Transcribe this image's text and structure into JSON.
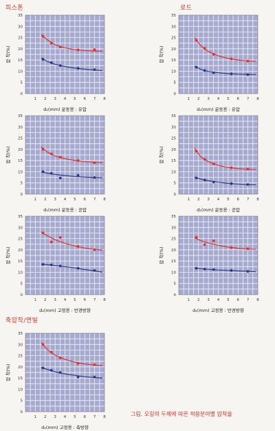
{
  "sections": {
    "piston": "피스톤",
    "rod": "로드",
    "shaft_flange": "축압착/면빌"
  },
  "caption": "그림. 오링의 두께에 따른 적용분야별 압착율",
  "colors": {
    "red": "#e0312b",
    "blue": "#283a84",
    "plot_bg": "#a7aad0"
  },
  "chart_data": [
    {
      "type": "scatter",
      "xlabel": "d₂(mm) 운동용 : 유압",
      "ylabel": "압 착(%)",
      "xlim": [
        0,
        8
      ],
      "ylim": [
        0,
        35
      ],
      "xticks": [
        "1",
        "2",
        "3",
        "4",
        "5",
        "6",
        "7",
        "8"
      ],
      "yticks": [
        "0",
        "5",
        "10",
        "15",
        "20",
        "25",
        "30",
        "35"
      ],
      "grid": true,
      "series": [
        {
          "color": "red",
          "x": [
            1.78,
            2.62,
            3.53,
            5.33,
            6.99
          ],
          "y": [
            25.5,
            22.5,
            20.8,
            19.5,
            19.6
          ],
          "curve": [
            [
              1.6,
              26.5
            ],
            [
              2.2,
              24
            ],
            [
              3,
              21.8
            ],
            [
              4,
              20.4
            ],
            [
              5,
              19.6
            ],
            [
              6,
              19.2
            ],
            [
              7,
              19
            ],
            [
              7.8,
              18.9
            ]
          ]
        },
        {
          "color": "blue",
          "x": [
            1.78,
            2.62,
            3.53,
            5.33,
            6.99
          ],
          "y": [
            15.3,
            13.8,
            12.5,
            11.3,
            10.7
          ],
          "curve": [
            [
              1.6,
              15.8
            ],
            [
              2.2,
              14.4
            ],
            [
              3,
              13.1
            ],
            [
              4,
              12.1
            ],
            [
              5,
              11.4
            ],
            [
              6,
              10.9
            ],
            [
              7,
              10.5
            ],
            [
              7.8,
              10.3
            ]
          ]
        }
      ]
    },
    {
      "type": "scatter",
      "xlabel": "d₂(mm) 운동용 : 유압",
      "ylabel": "압 착(%)",
      "xlim": [
        0,
        8
      ],
      "ylim": [
        0,
        35
      ],
      "xticks": [
        "1",
        "2",
        "3",
        "4",
        "5",
        "6",
        "7",
        "8"
      ],
      "yticks": [
        "0",
        "5",
        "10",
        "15",
        "20",
        "25",
        "30",
        "35"
      ],
      "grid": true,
      "series": [
        {
          "color": "red",
          "x": [
            1.78,
            2.62,
            3.53,
            5.33,
            6.99
          ],
          "y": [
            23.8,
            20.2,
            17.5,
            15.5,
            14.5
          ],
          "curve": [
            [
              1.6,
              25
            ],
            [
              2.2,
              21.5
            ],
            [
              3,
              18.8
            ],
            [
              4,
              16.9
            ],
            [
              5,
              15.7
            ],
            [
              6,
              15
            ],
            [
              7,
              14.6
            ],
            [
              7.8,
              14.4
            ]
          ]
        },
        {
          "color": "blue",
          "x": [
            1.78,
            2.62,
            3.53,
            5.33,
            6.99
          ],
          "y": [
            11.8,
            10.3,
            9.3,
            8.8,
            8.5
          ],
          "curve": [
            [
              1.6,
              12.3
            ],
            [
              2.2,
              10.9
            ],
            [
              3,
              9.9
            ],
            [
              4,
              9.3
            ],
            [
              5,
              8.9
            ],
            [
              6,
              8.7
            ],
            [
              7,
              8.6
            ],
            [
              7.8,
              8.5
            ]
          ]
        }
      ]
    },
    {
      "type": "scatter",
      "xlabel": "d₂(mm) 운동용 : 공압",
      "ylabel": "압 착(%)",
      "xlim": [
        0,
        8
      ],
      "ylim": [
        0,
        35
      ],
      "xticks": [
        "1",
        "2",
        "3",
        "4",
        "5",
        "6",
        "7",
        "8"
      ],
      "yticks": [
        "0",
        "5",
        "10",
        "15",
        "20",
        "25",
        "30",
        "35"
      ],
      "grid": true,
      "series": [
        {
          "color": "red",
          "x": [
            1.78,
            2.62,
            3.53,
            5.33,
            6.99
          ],
          "y": [
            20,
            18,
            16.5,
            15,
            14
          ],
          "curve": [
            [
              1.6,
              21
            ],
            [
              2.2,
              18.8
            ],
            [
              3,
              17
            ],
            [
              4,
              15.8
            ],
            [
              5,
              15
            ],
            [
              6,
              14.5
            ],
            [
              7,
              14.2
            ],
            [
              7.8,
              14
            ]
          ]
        },
        {
          "color": "blue",
          "x": [
            1.78,
            2.62,
            3.53,
            5.33,
            6.99
          ],
          "y": [
            10,
            9.3,
            7.2,
            8.4,
            7.4
          ],
          "curve": [
            [
              1.6,
              9.9
            ],
            [
              2.2,
              9.4
            ],
            [
              3,
              8.8
            ],
            [
              4,
              8.3
            ],
            [
              5,
              7.9
            ],
            [
              6,
              7.6
            ],
            [
              7,
              7.4
            ],
            [
              7.8,
              7.3
            ]
          ]
        }
      ]
    },
    {
      "type": "scatter",
      "xlabel": "d₂(mm) 운동용 : 공압",
      "ylabel": "압 착(%)",
      "xlim": [
        0,
        8
      ],
      "ylim": [
        0,
        35
      ],
      "xticks": [
        "1",
        "2",
        "3",
        "4",
        "5",
        "6",
        "7",
        "8"
      ],
      "yticks": [
        "0",
        "5",
        "10",
        "15",
        "20",
        "25",
        "30",
        "35"
      ],
      "grid": true,
      "series": [
        {
          "color": "red",
          "x": [
            1.78,
            2.62,
            3.53,
            5.33,
            6.99
          ],
          "y": [
            19.2,
            15.5,
            13.5,
            11.8,
            11.2
          ],
          "curve": [
            [
              1.6,
              20.5
            ],
            [
              2.2,
              16.8
            ],
            [
              3,
              14.5
            ],
            [
              4,
              12.8
            ],
            [
              5,
              11.9
            ],
            [
              6,
              11.4
            ],
            [
              7,
              11.1
            ],
            [
              7.8,
              11
            ]
          ]
        },
        {
          "color": "blue",
          "x": [
            1.78,
            2.62,
            3.53,
            5.33,
            6.99
          ],
          "y": [
            7.2,
            6.3,
            5.4,
            4.7,
            4.3
          ],
          "curve": [
            [
              1.6,
              7.6
            ],
            [
              2.2,
              6.8
            ],
            [
              3,
              6
            ],
            [
              4,
              5.3
            ],
            [
              5,
              4.8
            ],
            [
              6,
              4.5
            ],
            [
              7,
              4.3
            ],
            [
              7.8,
              4.2
            ]
          ]
        }
      ]
    },
    {
      "type": "scatter",
      "xlabel": "d₂(mm) 고정용 : 반경방향",
      "ylabel": "압 착(%)",
      "xlim": [
        0,
        8
      ],
      "ylim": [
        0,
        35
      ],
      "xticks": [
        "1",
        "2",
        "3",
        "4",
        "5",
        "6",
        "7",
        "8"
      ],
      "yticks": [
        "0",
        "5",
        "10",
        "15",
        "20",
        "25",
        "30",
        "35"
      ],
      "grid": true,
      "series": [
        {
          "color": "red",
          "x": [
            1.78,
            2.62,
            3.53,
            5.33,
            6.99
          ],
          "y": [
            27.5,
            23.5,
            25.5,
            21.5,
            20
          ],
          "curve": [
            [
              1.6,
              28
            ],
            [
              2.2,
              26.3
            ],
            [
              3,
              24.5
            ],
            [
              4,
              22.9
            ],
            [
              5,
              21.7
            ],
            [
              6,
              20.8
            ],
            [
              7,
              20.2
            ],
            [
              7.8,
              19.8
            ]
          ]
        },
        {
          "color": "blue",
          "x": [
            1.78,
            2.62,
            3.53,
            5.33,
            6.99
          ],
          "y": [
            13.5,
            13.3,
            12.8,
            11.8,
            10.8
          ],
          "curve": [
            [
              1.6,
              13.6
            ],
            [
              2.2,
              13.4
            ],
            [
              3,
              13
            ],
            [
              4,
              12.5
            ],
            [
              5,
              11.9
            ],
            [
              6,
              11.2
            ],
            [
              7,
              10.6
            ],
            [
              7.8,
              10.1
            ]
          ]
        }
      ]
    },
    {
      "type": "scatter",
      "xlabel": "d₂(mm) 고정용 : 반경방향",
      "ylabel": "압 착(%)",
      "xlim": [
        0,
        8
      ],
      "ylim": [
        0,
        35
      ],
      "xticks": [
        "1",
        "2",
        "3",
        "4",
        "5",
        "6",
        "7",
        "8"
      ],
      "yticks": [
        "0",
        "5",
        "10",
        "15",
        "20",
        "25",
        "30",
        "35"
      ],
      "grid": true,
      "series": [
        {
          "color": "red",
          "x": [
            1.78,
            2.62,
            3.53,
            5.33,
            6.99
          ],
          "y": [
            25.5,
            22.3,
            24,
            21,
            20.5
          ],
          "curve": [
            [
              1.6,
              25.3
            ],
            [
              2.2,
              24.2
            ],
            [
              3,
              23
            ],
            [
              4,
              22
            ],
            [
              5,
              21.2
            ],
            [
              6,
              20.7
            ],
            [
              7,
              20.4
            ],
            [
              7.8,
              20.2
            ]
          ]
        },
        {
          "color": "blue",
          "x": [
            1.78,
            2.62,
            3.53,
            5.33,
            6.99
          ],
          "y": [
            11.8,
            11.4,
            11.2,
            10.8,
            10.4
          ],
          "curve": [
            [
              1.6,
              11.9
            ],
            [
              2.2,
              11.6
            ],
            [
              3,
              11.3
            ],
            [
              4,
              11
            ],
            [
              5,
              10.8
            ],
            [
              6,
              10.6
            ],
            [
              7,
              10.4
            ],
            [
              7.8,
              10.3
            ]
          ]
        }
      ]
    },
    {
      "type": "scatter",
      "xlabel": "d₂(mm) 고정용 : 축방향",
      "ylabel": "압 착(%)",
      "xlim": [
        0,
        8
      ],
      "ylim": [
        0,
        35
      ],
      "xticks": [
        "1",
        "2",
        "3",
        "4",
        "5",
        "6",
        "7",
        "8"
      ],
      "yticks": [
        "0",
        "5",
        "10",
        "15",
        "20",
        "25",
        "30",
        "35"
      ],
      "grid": true,
      "series": [
        {
          "color": "red",
          "x": [
            1.78,
            2.62,
            3.53,
            5.33,
            6.99
          ],
          "y": [
            30,
            26.5,
            24,
            21.5,
            21
          ],
          "curve": [
            [
              1.6,
              30.8
            ],
            [
              2.2,
              27.8
            ],
            [
              3,
              25.2
            ],
            [
              4,
              23.3
            ],
            [
              5,
              22.1
            ],
            [
              6,
              21.3
            ],
            [
              7,
              20.8
            ],
            [
              7.8,
              20.6
            ]
          ]
        },
        {
          "color": "blue",
          "x": [
            1.78,
            2.62,
            3.53,
            5.33,
            6.99
          ],
          "y": [
            19.5,
            18.5,
            17.5,
            15.5,
            15.5
          ],
          "curve": [
            [
              1.6,
              19.8
            ],
            [
              2.2,
              18.9
            ],
            [
              3,
              17.8
            ],
            [
              4,
              16.9
            ],
            [
              5,
              16.2
            ],
            [
              6,
              15.6
            ],
            [
              7,
              15.2
            ],
            [
              7.8,
              15
            ]
          ]
        }
      ]
    }
  ]
}
